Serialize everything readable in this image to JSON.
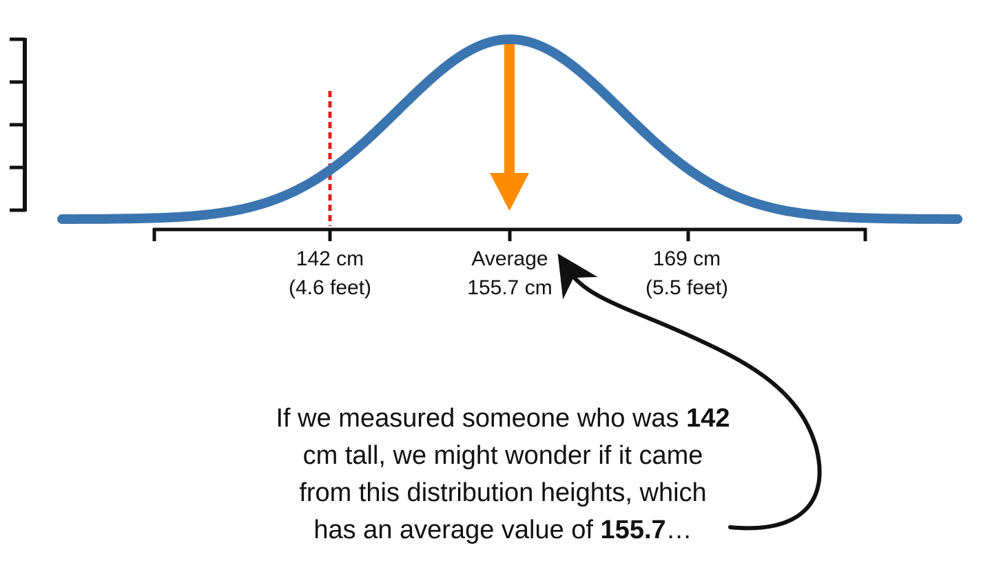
{
  "colors": {
    "curve": "#3a75b0",
    "mean_arrow": "#ff8c00",
    "observation_line": "#e0201b",
    "axes": "#111111",
    "callout_arrow": "#111111"
  },
  "x_axis": {
    "labels": [
      {
        "line1": "142 cm",
        "line2": "(4.6 feet)"
      },
      {
        "line1": "Average",
        "line2": "155.7 cm"
      },
      {
        "line1": "169 cm",
        "line2": "(5.5 feet)"
      }
    ]
  },
  "caption": {
    "line1_text": "If we measured someone who was ",
    "line1_bold": "142",
    "line2_text": "cm tall, we might wonder if it came",
    "line3_text": "from this distribution heights, which",
    "line4_text": "has an average value of ",
    "line4_bold": "155.7",
    "line4_suffix": "…"
  },
  "chart_data": {
    "type": "line",
    "series": [
      {
        "kind": "normal-density",
        "mean": 155.7,
        "sd": 6.8
      }
    ],
    "annotations": [
      {
        "kind": "vertical-dotted-line",
        "x": 142
      },
      {
        "kind": "downward-arrow",
        "x": 155.7
      }
    ],
    "x_ticks": [
      142,
      155.7,
      169
    ],
    "xlim": [
      128.4,
      183
    ]
  }
}
